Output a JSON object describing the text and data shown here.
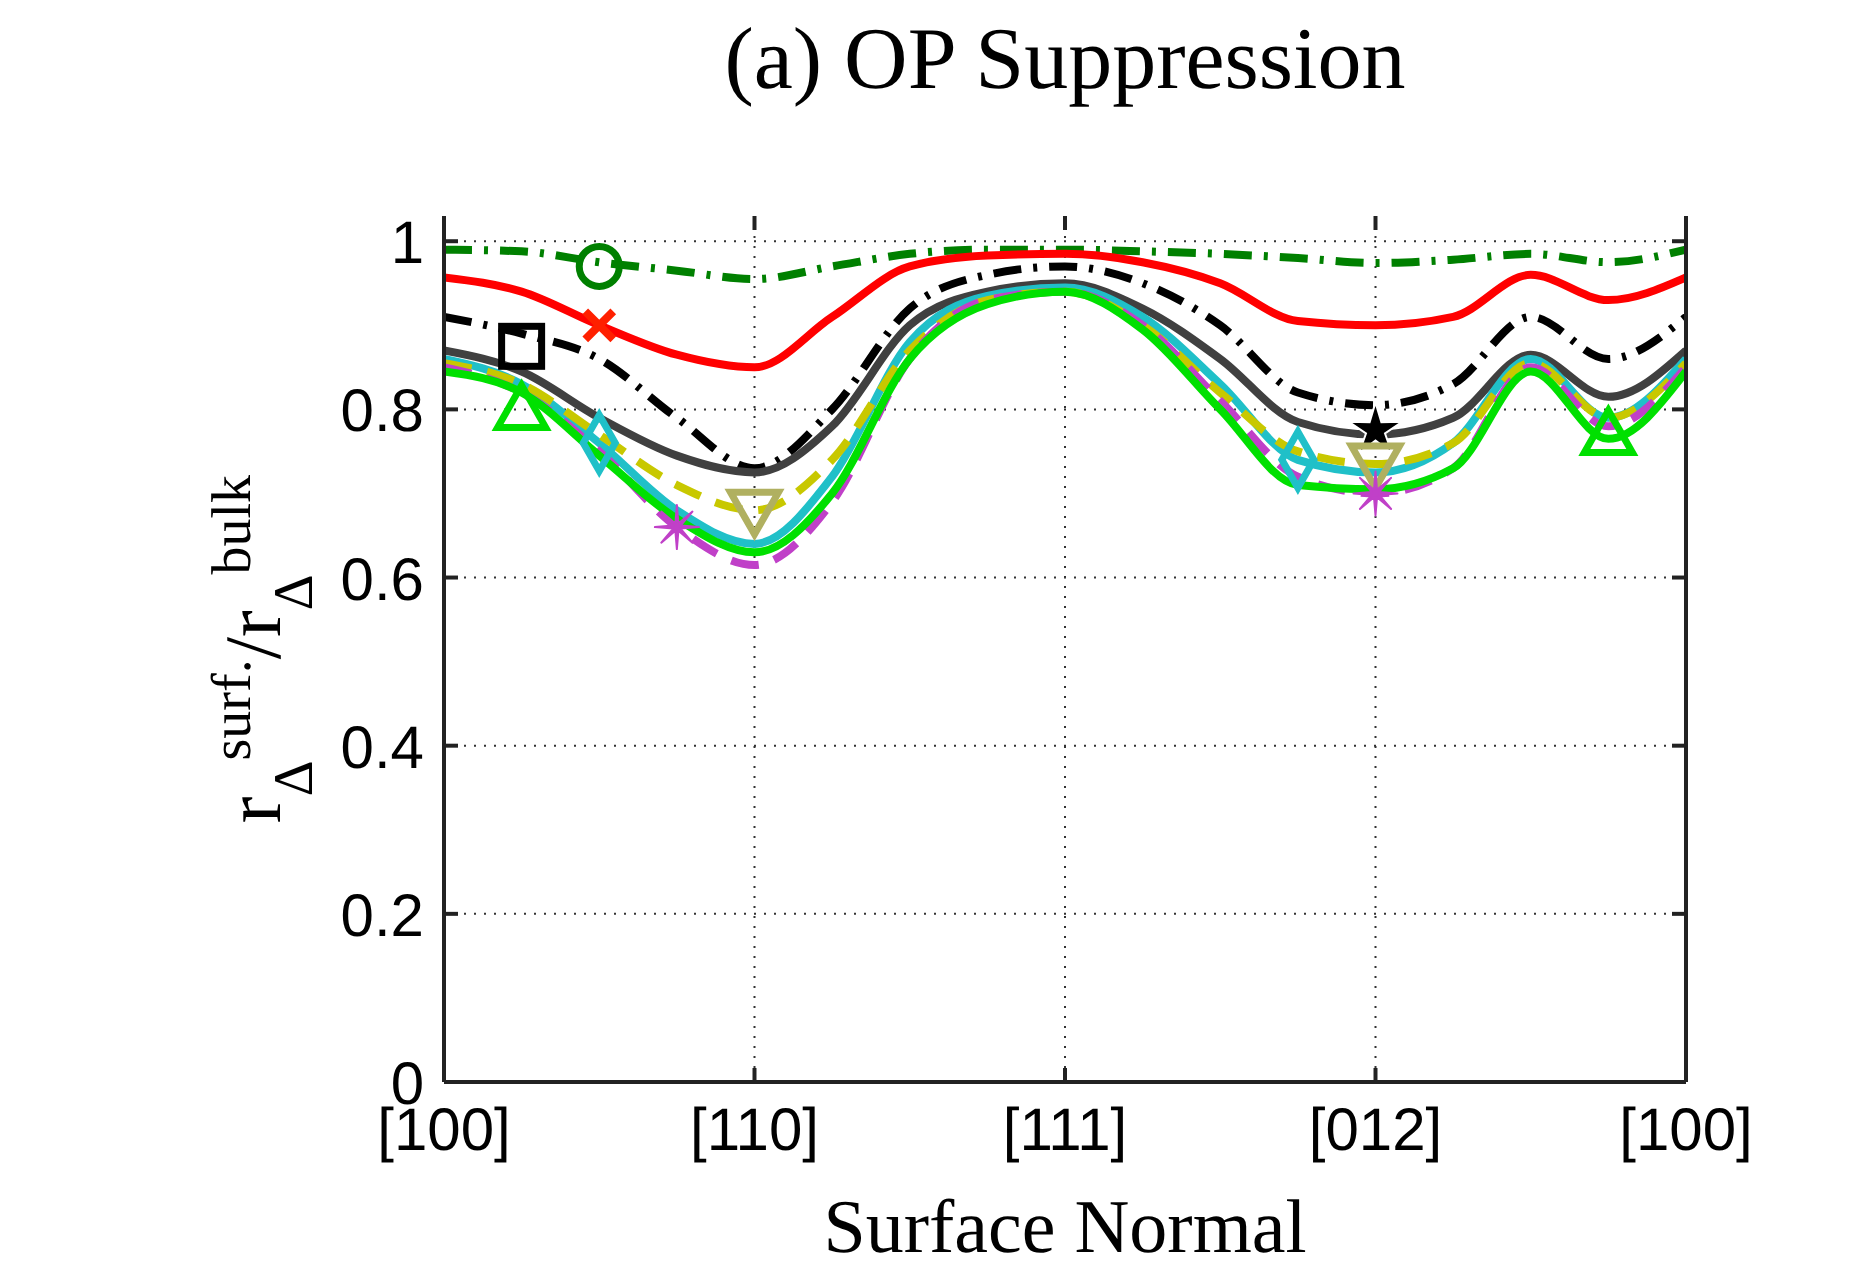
{
  "chart_data": {
    "type": "line",
    "title": "(a) OP Suppression",
    "xlabel": "Surface Normal",
    "ylabel": "r$_{Δ}$$^{surf.}$/r$_{Δ}$$^{bulk}$",
    "categories": [
      "[100]",
      null,
      null,
      null,
      "[110]",
      null,
      null,
      null,
      "[111]",
      null,
      null,
      null,
      "[012]",
      null,
      null,
      null,
      "[100]"
    ],
    "ylim": [
      0,
      1.03
    ],
    "yticks": [
      0,
      0.2,
      0.4,
      0.6,
      0.8,
      1
    ],
    "grid": true,
    "marker": "none",
    "series": [
      {
        "color": "#008000",
        "line_style": "dashdot",
        "values": [
          0.99,
          0.988,
          0.975,
          0.965,
          0.955,
          0.97,
          0.985,
          0.99,
          0.99,
          0.988,
          0.985,
          0.98,
          0.974,
          0.978,
          0.985,
          0.975,
          0.99
        ]
      },
      {
        "color": "#ff0000",
        "values": [
          0.957,
          0.94,
          0.9,
          0.865,
          0.85,
          0.91,
          0.97,
          0.983,
          0.985,
          0.975,
          0.95,
          0.905,
          0.9,
          0.91,
          0.96,
          0.93,
          0.957
        ]
      },
      {
        "color": "#000000",
        "line_style": "dashdot",
        "values": [
          0.91,
          0.89,
          0.86,
          0.79,
          0.73,
          0.8,
          0.92,
          0.96,
          0.97,
          0.95,
          0.9,
          0.82,
          0.805,
          0.83,
          0.91,
          0.86,
          0.91
        ]
      },
      {
        "color": "#404040",
        "values": [
          0.87,
          0.845,
          0.79,
          0.745,
          0.725,
          0.78,
          0.9,
          0.94,
          0.95,
          0.92,
          0.86,
          0.785,
          0.77,
          0.79,
          0.865,
          0.815,
          0.87
        ]
      },
      {
        "color": "#20c0c8",
        "values": [
          0.86,
          0.83,
          0.76,
          0.68,
          0.64,
          0.72,
          0.88,
          0.935,
          0.945,
          0.91,
          0.83,
          0.74,
          0.725,
          0.76,
          0.86,
          0.79,
          0.86
        ]
      },
      {
        "color": "#c8c800",
        "line_style": "dashed",
        "values": [
          0.855,
          0.83,
          0.77,
          0.71,
          0.68,
          0.74,
          0.87,
          0.93,
          0.94,
          0.9,
          0.82,
          0.75,
          0.735,
          0.76,
          0.855,
          0.79,
          0.855
        ]
      },
      {
        "color": "#c040c8",
        "line_style": "dashed",
        "values": [
          0.85,
          0.82,
          0.75,
          0.66,
          0.615,
          0.69,
          0.86,
          0.93,
          0.94,
          0.9,
          0.81,
          0.72,
          0.7,
          0.73,
          0.85,
          0.78,
          0.85
        ]
      },
      {
        "color": "#00e000",
        "values": [
          0.845,
          0.82,
          0.745,
          0.67,
          0.63,
          0.7,
          0.86,
          0.925,
          0.94,
          0.895,
          0.8,
          0.71,
          0.705,
          0.73,
          0.845,
          0.765,
          0.845
        ]
      },
      {
        "type": "scatter",
        "color": "#008000",
        "marker": "circle",
        "values": [
          null,
          null,
          0.97,
          null,
          null,
          null,
          null,
          null,
          null,
          null,
          null,
          null,
          null,
          null,
          null,
          null,
          null
        ]
      },
      {
        "type": "scatter",
        "color": "#ff2000",
        "marker": "x",
        "values": [
          null,
          null,
          0.9,
          null,
          null,
          null,
          null,
          null,
          null,
          null,
          null,
          null,
          null,
          null,
          null,
          null,
          null
        ]
      },
      {
        "type": "scatter",
        "color": "#000000",
        "marker": "square",
        "values": [
          null,
          0.875,
          null,
          null,
          null,
          null,
          null,
          null,
          null,
          null,
          null,
          null,
          null,
          null,
          null,
          null,
          null
        ]
      },
      {
        "type": "scatter",
        "color": "#000000",
        "marker": "star",
        "values": [
          null,
          null,
          null,
          null,
          null,
          null,
          null,
          null,
          null,
          null,
          null,
          null,
          0.775,
          null,
          null,
          null,
          null
        ]
      },
      {
        "type": "scatter",
        "color": "#20c0c8",
        "marker": "diamond",
        "values": [
          null,
          null,
          0.76,
          null,
          null,
          null,
          null,
          null,
          null,
          null,
          null,
          0.74,
          null,
          null,
          null,
          null,
          null
        ]
      },
      {
        "type": "scatter",
        "color": "#b0b060",
        "marker": "triangle-down",
        "values": [
          null,
          null,
          null,
          null,
          0.68,
          null,
          null,
          null,
          null,
          null,
          null,
          null,
          0.735,
          null,
          null,
          null,
          null
        ]
      },
      {
        "type": "scatter",
        "color": "#c040c8",
        "marker": "cross",
        "values": [
          null,
          null,
          null,
          0.66,
          null,
          null,
          null,
          null,
          null,
          null,
          null,
          null,
          0.7,
          null,
          null,
          null,
          null
        ]
      },
      {
        "type": "scatter",
        "color": "#00e000",
        "marker": "triangle",
        "values": [
          null,
          0.8,
          null,
          null,
          null,
          null,
          null,
          null,
          null,
          null,
          null,
          null,
          null,
          null,
          null,
          0.77,
          null
        ]
      }
    ]
  }
}
